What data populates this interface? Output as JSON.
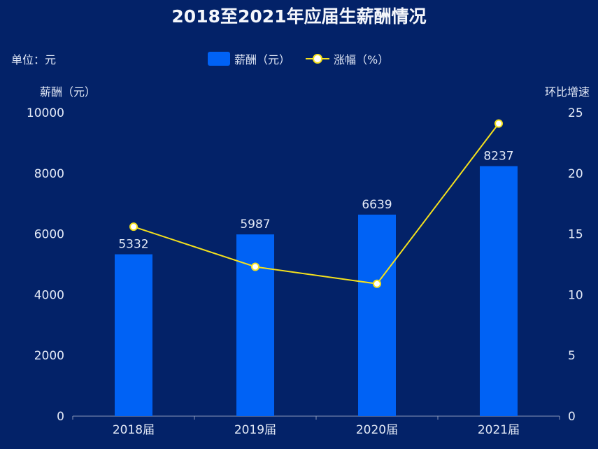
{
  "title": "2018至2021年应届生薪酬情况",
  "unit_label": "单位：元",
  "legend": [
    "薪酬（元）",
    "涨幅（%）"
  ],
  "colors": {
    "background": "#032268",
    "bar": "#0062f5",
    "line": "#f5e11c"
  },
  "chart_data": {
    "type": "bar+line",
    "title": "2018至2021年应届生薪酬情况",
    "categories": [
      "2018届",
      "2019届",
      "2020届",
      "2021届"
    ],
    "series": [
      {
        "name": "薪酬（元）",
        "type": "bar",
        "axis": "left",
        "values": [
          5332,
          5987,
          6639,
          8237
        ],
        "labels": [
          "5332",
          "5987",
          "6639",
          "8237"
        ]
      },
      {
        "name": "涨幅（%）",
        "type": "line",
        "axis": "right",
        "values": [
          15.6,
          12.3,
          10.9,
          24.1
        ]
      }
    ],
    "ylabel": "薪酬（元）",
    "y2label": "环比增速",
    "ylim": [
      0,
      10000
    ],
    "y2lim": [
      0,
      25
    ],
    "yticks": [
      "0",
      "2000",
      "4000",
      "6000",
      "8000",
      "10000"
    ],
    "y2ticks": [
      "0",
      "5",
      "10",
      "15",
      "20",
      "25"
    ],
    "legend_position": "top-center",
    "grid": false
  }
}
